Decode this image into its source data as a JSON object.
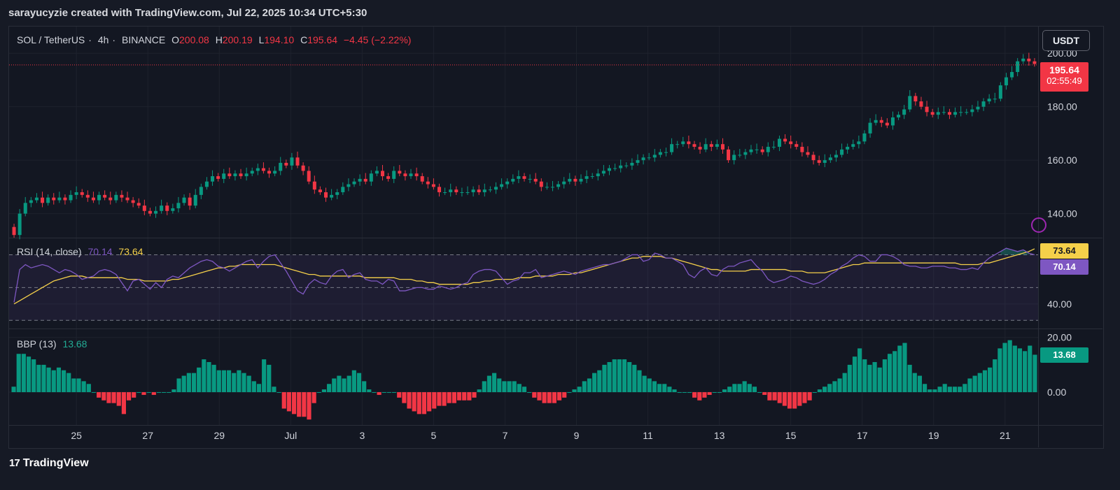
{
  "header": "sarayucyzie created with TradingView.com, Jul 22, 2025 10:34 UTC+5:30",
  "symbol": {
    "name": "SOL / TetherUS",
    "interval": "4h",
    "exchange": "BINANCE",
    "o_label": "O",
    "o": "200.08",
    "h_label": "H",
    "h": "200.19",
    "l_label": "L",
    "l": "194.10",
    "c_label": "C",
    "c": "195.64",
    "change": "−4.45 (−2.22%)"
  },
  "currency_button": "USDT",
  "last_price": "195.64",
  "countdown": "02:55:49",
  "rsi": {
    "label": "RSI (14, close)",
    "value": "70.14",
    "ma": "73.64"
  },
  "bbp": {
    "label": "BBP (13)",
    "value": "13.68"
  },
  "logo": "TradingView",
  "colors": {
    "up": "#089981",
    "down": "#f23645",
    "rsi": "#7e57c2",
    "rsi_ma": "#f5d04a"
  },
  "chart_data": [
    {
      "type": "candlestick",
      "title": "SOL / TetherUS · 4h · BINANCE",
      "x_ticks": [
        "25",
        "27",
        "29",
        "Jul",
        "3",
        "5",
        "7",
        "9",
        "11",
        "13",
        "15",
        "17",
        "19",
        "21"
      ],
      "y_ticks": [
        "140.00",
        "160.00",
        "180.00",
        "200.00"
      ],
      "ylim": [
        131,
        210
      ],
      "close": [
        132,
        140,
        144,
        145,
        146,
        144,
        146,
        145,
        146,
        145,
        147,
        148,
        147,
        146,
        145,
        147,
        146,
        145,
        147,
        146,
        145,
        144,
        143,
        141,
        140,
        141,
        143,
        141,
        142,
        144,
        146,
        143,
        147,
        150,
        152,
        154,
        153,
        155,
        154,
        155,
        154,
        155,
        156,
        157,
        156,
        155,
        156,
        159,
        158,
        161,
        158,
        156,
        152,
        149,
        148,
        146,
        147,
        148,
        150,
        151,
        152,
        153,
        152,
        155,
        156,
        154,
        153,
        156,
        155,
        154,
        155,
        154,
        152,
        151,
        150,
        148,
        148,
        149,
        148,
        148,
        148,
        149,
        148,
        149,
        149,
        150,
        151,
        152,
        153,
        154,
        153,
        153,
        152,
        150,
        150,
        150,
        151,
        152,
        153,
        152,
        153,
        154,
        154,
        155,
        156,
        157,
        157,
        158,
        158,
        159,
        160,
        161,
        161,
        162,
        163,
        163,
        166,
        166,
        167,
        166,
        165,
        164,
        166,
        165,
        166,
        164,
        160,
        162,
        162,
        163,
        164,
        164,
        163,
        165,
        165,
        168,
        167,
        166,
        165,
        163,
        162,
        160,
        159,
        160,
        161,
        162,
        164,
        165,
        166,
        167,
        170,
        174,
        175,
        174,
        173,
        176,
        177,
        179,
        184,
        182,
        180,
        178,
        177,
        178,
        178,
        177,
        178,
        178,
        178,
        179,
        180,
        182,
        183,
        183,
        188,
        191,
        193,
        197,
        198,
        197,
        196
      ],
      "volume_note": "none"
    },
    {
      "type": "line",
      "title": "RSI (14, close)",
      "y_ticks": [
        "40.00"
      ],
      "ylim": [
        25,
        80
      ],
      "series": [
        {
          "name": "RSI",
          "values": [
            41,
            61,
            64,
            62,
            63,
            64,
            63,
            61,
            59,
            61,
            60,
            58,
            55,
            56,
            57,
            60,
            61,
            60,
            58,
            53,
            48,
            54,
            55,
            52,
            49,
            53,
            50,
            55,
            57,
            56,
            59,
            62,
            64,
            66,
            67,
            66,
            63,
            62,
            60,
            62,
            64,
            66,
            67,
            62,
            66,
            69,
            70,
            65,
            60,
            54,
            48,
            46,
            52,
            55,
            53,
            52,
            57,
            60,
            61,
            56,
            58,
            59,
            55,
            54,
            54,
            52,
            55,
            54,
            48,
            48,
            49,
            50,
            50,
            49,
            49,
            51,
            50,
            49,
            50,
            52,
            53,
            58,
            60,
            61,
            61,
            60,
            56,
            52,
            54,
            55,
            59,
            59,
            61,
            56,
            57,
            58,
            59,
            60,
            59,
            58,
            60,
            61,
            62,
            63,
            64,
            64,
            65,
            66,
            68,
            70,
            70,
            66,
            67,
            71,
            70,
            68,
            68,
            66,
            64,
            58,
            56,
            60,
            62,
            58,
            57,
            61,
            63,
            63,
            65,
            66,
            67,
            63,
            60,
            55,
            53,
            54,
            55,
            57,
            56,
            54,
            53,
            52,
            53,
            55,
            58,
            60,
            63,
            65,
            68,
            70,
            69,
            66,
            66,
            70,
            70,
            69,
            67,
            64,
            63,
            63,
            62,
            62,
            63,
            63,
            63,
            62,
            62,
            61,
            61,
            62,
            61,
            65,
            68,
            70,
            72,
            74,
            73,
            72,
            73,
            71,
            70
          ]
        },
        {
          "name": "RSI-based MA",
          "values": [
            40,
            42,
            44,
            46,
            48,
            50,
            52,
            54,
            55,
            56,
            57,
            57,
            57,
            56,
            56,
            56,
            56,
            56,
            56,
            56,
            55,
            55,
            55,
            54,
            54,
            54,
            54,
            54,
            55,
            55,
            56,
            57,
            58,
            59,
            60,
            61,
            62,
            62,
            63,
            63,
            64,
            64,
            64,
            64,
            64,
            64,
            64,
            63,
            62,
            61,
            60,
            59,
            58,
            58,
            57,
            57,
            57,
            57,
            57,
            57,
            57,
            57,
            56,
            56,
            56,
            56,
            56,
            56,
            55,
            55,
            55,
            54,
            54,
            53,
            53,
            52,
            52,
            52,
            52,
            52,
            52,
            53,
            53,
            54,
            54,
            55,
            55,
            55,
            55,
            56,
            56,
            56,
            57,
            57,
            57,
            57,
            58,
            58,
            58,
            59,
            59,
            60,
            61,
            62,
            63,
            64,
            65,
            66,
            67,
            68,
            68,
            69,
            69,
            69,
            69,
            68,
            68,
            67,
            66,
            65,
            64,
            63,
            62,
            61,
            61,
            60,
            60,
            60,
            60,
            60,
            61,
            61,
            61,
            61,
            61,
            61,
            61,
            60,
            60,
            60,
            59,
            59,
            59,
            59,
            60,
            61,
            62,
            63,
            64,
            64,
            65,
            65,
            65,
            65,
            65,
            65,
            65,
            65,
            65,
            65,
            65,
            65,
            65,
            65,
            65,
            65,
            65,
            64,
            64,
            64,
            64,
            65,
            65,
            66,
            67,
            68,
            69,
            70,
            71,
            72,
            73.64
          ]
        }
      ]
    },
    {
      "type": "bar",
      "title": "BBP (13)",
      "y_ticks": [
        "0.00",
        "20.00"
      ],
      "ylim": [
        -12,
        23
      ],
      "values": [
        2,
        14,
        14,
        13,
        12,
        10,
        10,
        9,
        8,
        9,
        8,
        7,
        5,
        5,
        4,
        3,
        0,
        -2,
        -3,
        -4,
        -4,
        -5,
        -8,
        -3,
        -2,
        0,
        -1,
        0,
        -1,
        0,
        0,
        0,
        1,
        5,
        6,
        7,
        7,
        9,
        12,
        11,
        10,
        8,
        8,
        8,
        7,
        8,
        7,
        6,
        4,
        3,
        12,
        10,
        2,
        0,
        -6,
        -7,
        -8,
        -9,
        -9,
        -10,
        -4,
        0,
        1,
        3,
        5,
        6,
        5,
        6,
        8,
        7,
        4,
        1,
        0,
        -1,
        0,
        0,
        0,
        -2,
        -4,
        -6,
        -7,
        -8,
        -8,
        -7,
        -6,
        -5,
        -5,
        -4,
        -4,
        -3,
        -3,
        -3,
        -2,
        1,
        4,
        6,
        7,
        5,
        4,
        4,
        4,
        3,
        2,
        0,
        -2,
        -3,
        -4,
        -4,
        -4,
        -3,
        -2,
        0,
        1,
        2,
        4,
        5,
        7,
        8,
        10,
        11,
        12,
        12,
        12,
        11,
        10,
        8,
        6,
        5,
        4,
        3,
        3,
        2,
        1,
        0,
        0,
        0,
        -2,
        -3,
        -2,
        -1,
        0,
        0,
        1,
        2,
        3,
        3,
        4,
        3,
        2,
        0,
        -1,
        -3,
        -3,
        -4,
        -5,
        -6,
        -6,
        -5,
        -4,
        -3,
        0,
        1,
        2,
        3,
        4,
        5,
        7,
        10,
        13,
        16,
        12,
        10,
        11,
        9,
        12,
        14,
        15,
        17,
        18,
        10,
        7,
        6,
        3,
        1,
        1,
        2,
        3,
        2,
        2,
        2,
        3,
        5,
        6,
        7,
        8,
        9,
        12,
        16,
        18,
        19,
        17,
        16,
        15,
        17,
        13.68
      ]
    }
  ]
}
